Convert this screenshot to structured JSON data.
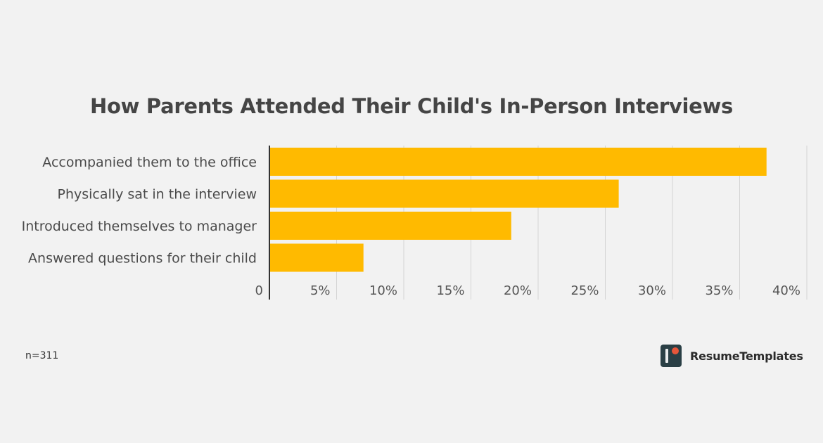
{
  "chart_data": {
    "type": "bar",
    "orientation": "horizontal",
    "title": "How Parents Attended Their Child's In-Person Interviews",
    "categories": [
      "Accompanied them to the office",
      "Physically sat in the interview",
      "Introduced themselves to manager",
      "Answered questions for their child"
    ],
    "values": [
      37,
      26,
      18,
      7
    ],
    "xlim": [
      0,
      40
    ],
    "x_ticks": [
      0,
      5,
      10,
      15,
      20,
      25,
      30,
      35,
      40
    ],
    "x_tick_labels": [
      "0",
      "5%",
      "10%",
      "15%",
      "20%",
      "25%",
      "30%",
      "35%",
      "40%"
    ],
    "grid": "vertical",
    "legend": "none",
    "bar_color": "#ffba00",
    "grid_color": "#d4d4d4",
    "axis_color": "#333333"
  },
  "footer": {
    "sample_note": "n=311",
    "brand": "ResumeTemplates",
    "brand_logo": {
      "name": "resumetemplates-logo-icon",
      "bg_color": "#2a3f45",
      "accent_color": "#e8563a"
    }
  }
}
